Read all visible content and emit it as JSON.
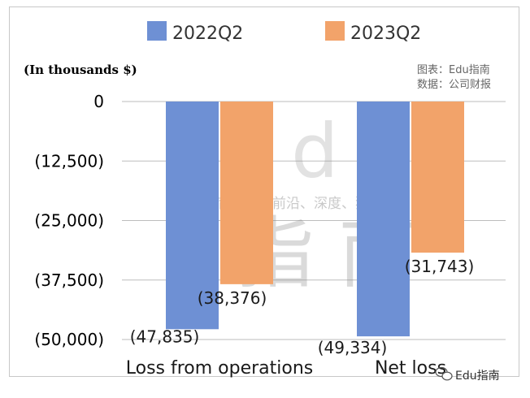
{
  "chart_data": {
    "type": "bar",
    "categories": [
      "Loss from operations",
      "Net loss"
    ],
    "series": [
      {
        "name": "2022Q2",
        "values": [
          -47835,
          -49334
        ],
        "labels": [
          "(47,835)",
          "(49,334)"
        ]
      },
      {
        "name": "2023Q2",
        "values": [
          -38376,
          -31743
        ],
        "labels": [
          "(38,376)",
          "(31,743)"
        ]
      }
    ],
    "colors": [
      "#6E90D4",
      "#F2A36A"
    ],
    "ylim": [
      -50000,
      0
    ],
    "y_ticks": [
      0,
      -12500,
      -25000,
      -37500,
      -50000
    ],
    "y_tick_labels": [
      "0",
      "(12,500)",
      "(25,000)",
      "(37,500)",
      "(50,000)"
    ],
    "units_label": "(In thousands $)",
    "grid": true,
    "legend": "top"
  },
  "source_note": {
    "line1": "图表：Edu指南",
    "line2": "数据：公司财报"
  },
  "watermark": {
    "main": "Edu",
    "sub": "教育行业，前沿、深度、独家",
    "cn": "指南"
  },
  "brand": {
    "name": "Edu指南",
    "icon": "wechat-icon"
  }
}
